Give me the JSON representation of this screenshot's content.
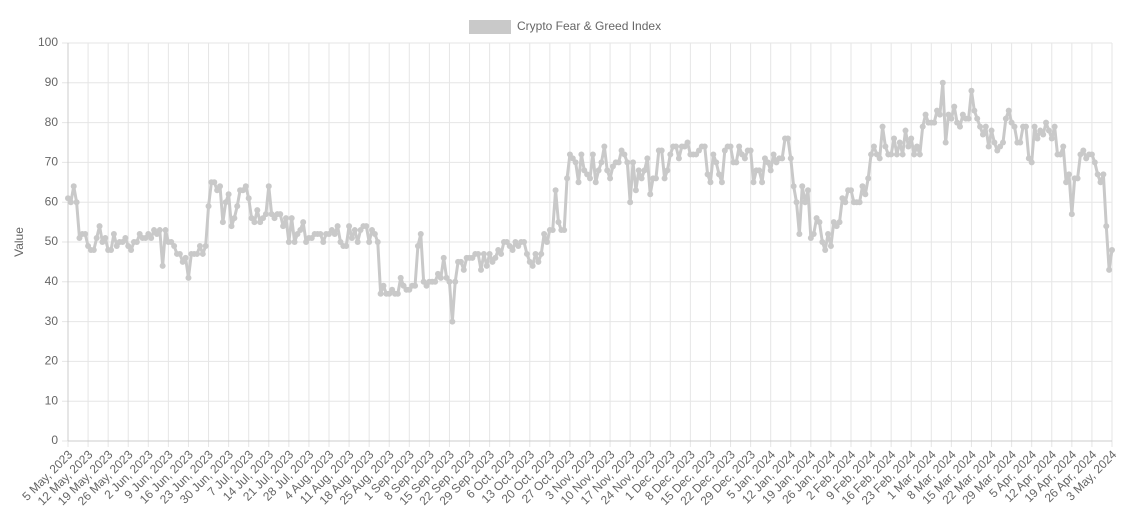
{
  "chart_data": {
    "type": "line",
    "y_label": "Value",
    "ylim": [
      0,
      100
    ],
    "yticks": [
      0,
      10,
      20,
      30,
      40,
      50,
      60,
      70,
      80,
      90,
      100
    ],
    "grid": true,
    "legend": "top",
    "categories": [
      "5 May, 2023",
      null,
      null,
      null,
      null,
      null,
      null,
      "12 May, 2023",
      null,
      null,
      null,
      null,
      null,
      null,
      "19 May, 2023",
      null,
      null,
      null,
      null,
      null,
      null,
      "26 May, 2023",
      null,
      null,
      null,
      null,
      null,
      null,
      "2 Jun, 2023",
      null,
      null,
      null,
      null,
      null,
      null,
      "9 Jun, 2023",
      null,
      null,
      null,
      null,
      null,
      null,
      "16 Jun, 2023",
      null,
      null,
      null,
      null,
      null,
      null,
      "23 Jun, 2023",
      null,
      null,
      null,
      null,
      null,
      null,
      "30 Jun, 2023",
      null,
      null,
      null,
      null,
      null,
      null,
      "7 Jul, 2023",
      null,
      null,
      null,
      null,
      null,
      null,
      "14 Jul, 2023",
      null,
      null,
      null,
      null,
      null,
      null,
      "21 Jul, 2023",
      null,
      null,
      null,
      null,
      null,
      null,
      "28 Jul, 2023",
      null,
      null,
      null,
      null,
      null,
      null,
      "4 Aug, 2023",
      null,
      null,
      null,
      null,
      null,
      null,
      "11 Aug, 2023",
      null,
      null,
      null,
      null,
      null,
      null,
      "18 Aug, 2023",
      null,
      null,
      null,
      null,
      null,
      null,
      "25 Aug, 2023",
      null,
      null,
      null,
      null,
      null,
      null,
      "1 Sep, 2023",
      null,
      null,
      null,
      null,
      null,
      null,
      "8 Sep, 2023",
      null,
      null,
      null,
      null,
      null,
      null,
      "15 Sep, 2023",
      null,
      null,
      null,
      null,
      null,
      null,
      "22 Sep, 2023",
      null,
      null,
      null,
      null,
      null,
      null,
      "29 Sep, 2023",
      null,
      null,
      null,
      null,
      null,
      null,
      "6 Oct, 2023",
      null,
      null,
      null,
      null,
      null,
      null,
      "13 Oct, 2023",
      null,
      null,
      null,
      null,
      null,
      null,
      "20 Oct, 2023",
      null,
      null,
      null,
      null,
      null,
      null,
      "27 Oct, 2023",
      null,
      null,
      null,
      null,
      null,
      null,
      "3 Nov, 2023",
      null,
      null,
      null,
      null,
      null,
      null,
      "10 Nov, 2023",
      null,
      null,
      null,
      null,
      null,
      null,
      "17 Nov, 2023",
      null,
      null,
      null,
      null,
      null,
      null,
      "24 Nov, 2023",
      null,
      null,
      null,
      null,
      null,
      null,
      "1 Dec, 2023",
      null,
      null,
      null,
      null,
      null,
      null,
      "8 Dec, 2023",
      null,
      null,
      null,
      null,
      null,
      null,
      "15 Dec, 2023",
      null,
      null,
      null,
      null,
      null,
      null,
      "22 Dec, 2023",
      null,
      null,
      null,
      null,
      null,
      null,
      "29 Dec, 2023",
      null,
      null,
      null,
      null,
      null,
      null,
      "5 Jan, 2024",
      null,
      null,
      null,
      null,
      null,
      null,
      "12 Jan, 2024",
      null,
      null,
      null,
      null,
      null,
      null,
      "19 Jan, 2024",
      null,
      null,
      null,
      null,
      null,
      null,
      "26 Jan, 2024",
      null,
      null,
      null,
      null,
      null,
      null,
      "2 Feb, 2024",
      null,
      null,
      null,
      null,
      null,
      null,
      "9 Feb, 2024",
      null,
      null,
      null,
      null,
      null,
      null,
      "16 Feb, 2024",
      null,
      null,
      null,
      null,
      null,
      null,
      "23 Feb, 2024",
      null,
      null,
      null,
      null,
      null,
      null,
      "1 Mar, 2024",
      null,
      null,
      null,
      null,
      null,
      null,
      "8 Mar, 2024",
      null,
      null,
      null,
      null,
      null,
      null,
      "15 Mar, 2024",
      null,
      null,
      null,
      null,
      null,
      null,
      "22 Mar, 2024",
      null,
      null,
      null,
      null,
      null,
      null,
      "29 Mar, 2024",
      null,
      null,
      null,
      null,
      null,
      null,
      "5 Apr, 2024",
      null,
      null,
      null,
      null,
      null,
      null,
      "12 Apr, 2024",
      null,
      null,
      null,
      null,
      null,
      null,
      "19 Apr, 2024",
      null,
      null,
      null,
      null,
      null,
      null,
      "26 Apr, 2024",
      null,
      null,
      null,
      null,
      null,
      null,
      "3 May, 2024"
    ],
    "series": [
      {
        "name": "Crypto Fear & Greed Index",
        "color": "#c9c9c9",
        "values": [
          61,
          60,
          64,
          60,
          51,
          52,
          52,
          49,
          48,
          48,
          51,
          54,
          50,
          51,
          48,
          48,
          52,
          49,
          50,
          50,
          51,
          49,
          48,
          50,
          50,
          52,
          51,
          51,
          52,
          51,
          53,
          52,
          53,
          44,
          53,
          50,
          50,
          49,
          47,
          47,
          45,
          46,
          41,
          47,
          47,
          47,
          49,
          47,
          49,
          59,
          65,
          65,
          63,
          64,
          55,
          60,
          62,
          54,
          56,
          59,
          63,
          63,
          64,
          61,
          56,
          55,
          58,
          55,
          56,
          57,
          64,
          57,
          56,
          57,
          57,
          54,
          56,
          50,
          56,
          50,
          52,
          53,
          55,
          50,
          51,
          51,
          52,
          52,
          52,
          50,
          52,
          52,
          53,
          52,
          54,
          50,
          49,
          49,
          54,
          51,
          53,
          50,
          53,
          54,
          54,
          50,
          53,
          52,
          50,
          37,
          39,
          37,
          37,
          38,
          37,
          37,
          41,
          39,
          38,
          38,
          39,
          39,
          49,
          52,
          40,
          39,
          40,
          40,
          40,
          42,
          41,
          46,
          41,
          40,
          30,
          40,
          45,
          45,
          43,
          46,
          46,
          46,
          47,
          47,
          43,
          47,
          44,
          47,
          45,
          46,
          48,
          47,
          50,
          50,
          49,
          48,
          50,
          49,
          50,
          50,
          47,
          45,
          44,
          47,
          45,
          47,
          52,
          50,
          53,
          53,
          63,
          55,
          53,
          53,
          66,
          72,
          71,
          70,
          65,
          72,
          68,
          67,
          66,
          72,
          65,
          68,
          70,
          74,
          68,
          66,
          69,
          70,
          70,
          73,
          72,
          70,
          60,
          70,
          63,
          68,
          66,
          68,
          71,
          62,
          66,
          66,
          73,
          73,
          66,
          68,
          72,
          74,
          74,
          71,
          74,
          74,
          75,
          72,
          72,
          72,
          73,
          74,
          74,
          67,
          65,
          72,
          70,
          67,
          65,
          73,
          74,
          74,
          70,
          70,
          74,
          72,
          71,
          73,
          73,
          65,
          68,
          68,
          65,
          71,
          70,
          68,
          72,
          70,
          71,
          71,
          76,
          76,
          71,
          64,
          60,
          52,
          64,
          60,
          63,
          51,
          52,
          56,
          55,
          50,
          48,
          52,
          49,
          55,
          54,
          55,
          61,
          60,
          63,
          63,
          60,
          60,
          60,
          64,
          62,
          66,
          72,
          74,
          72,
          71,
          79,
          74,
          72,
          72,
          76,
          72,
          75,
          72,
          78,
          74,
          76,
          72,
          74,
          72,
          79,
          82,
          80,
          80,
          80,
          83,
          82,
          90,
          75,
          82,
          81,
          84,
          80,
          79,
          82,
          81,
          81,
          88,
          83,
          81,
          79,
          77,
          79,
          74,
          78,
          75,
          73,
          74,
          75,
          81,
          83,
          80,
          79,
          75,
          75,
          79,
          79,
          71,
          70,
          79,
          76,
          78,
          77,
          80,
          78,
          76,
          79,
          72,
          72,
          74,
          65,
          67,
          57,
          66,
          66,
          72,
          73,
          71,
          72,
          72,
          70,
          67,
          65,
          67,
          54,
          43,
          48
        ]
      }
    ]
  }
}
